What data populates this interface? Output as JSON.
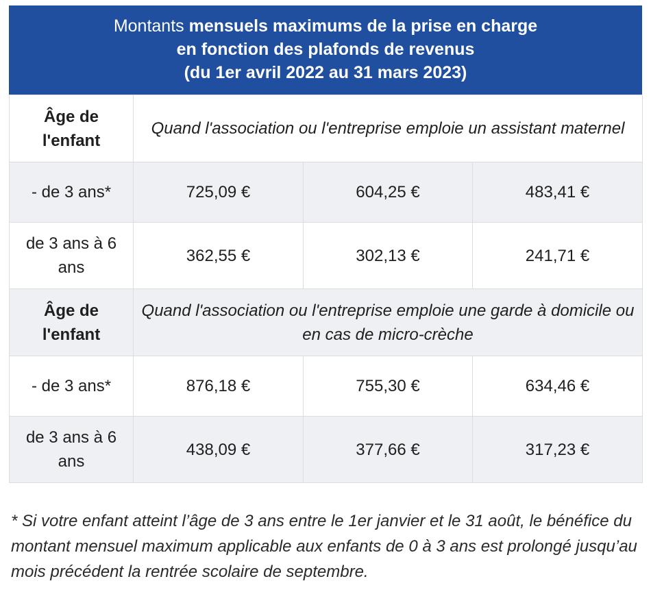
{
  "title": {
    "line1_prefix": "Montants ",
    "line1_bold": "mensuels maximums de la prise en charge",
    "line2": "en fonction des plafonds de revenus",
    "line3": "(du 1er avril 2022 au 31 mars 2023)"
  },
  "sections": [
    {
      "age_header": "Âge de l'enfant",
      "description": "Quand l'association ou l'entreprise emploie un assistant maternel",
      "rows": [
        {
          "age": "- de 3 ans*",
          "values": [
            "725,09 €",
            "604,25 €",
            "483,41 €"
          ]
        },
        {
          "age": "de 3 ans à 6 ans",
          "values": [
            "362,55 €",
            "302,13 €",
            "241,71 €"
          ]
        }
      ]
    },
    {
      "age_header": "Âge de l'enfant",
      "description": "Quand l'association ou l'entreprise emploie une garde à domicile ou en cas de micro-crèche",
      "rows": [
        {
          "age": "- de 3 ans*",
          "values": [
            "876,18 €",
            "755,30 €",
            "634,46 €"
          ]
        },
        {
          "age": "de 3 ans à 6 ans",
          "values": [
            "438,09 €",
            "377,66 €",
            "317,23 €"
          ]
        }
      ]
    }
  ],
  "footnote": "* Si votre enfant atteint l’âge de 3 ans entre le 1er janvier et le 31 août, le bénéfice du montant mensuel maximum applicable aux enfants de 0 à 3 ans est prolongé jusqu’au mois précédent la rentrée scolaire de septembre.",
  "colors": {
    "banner": "#1f4f9e",
    "row_shade": "#eef0f4",
    "border": "#dadde2"
  }
}
